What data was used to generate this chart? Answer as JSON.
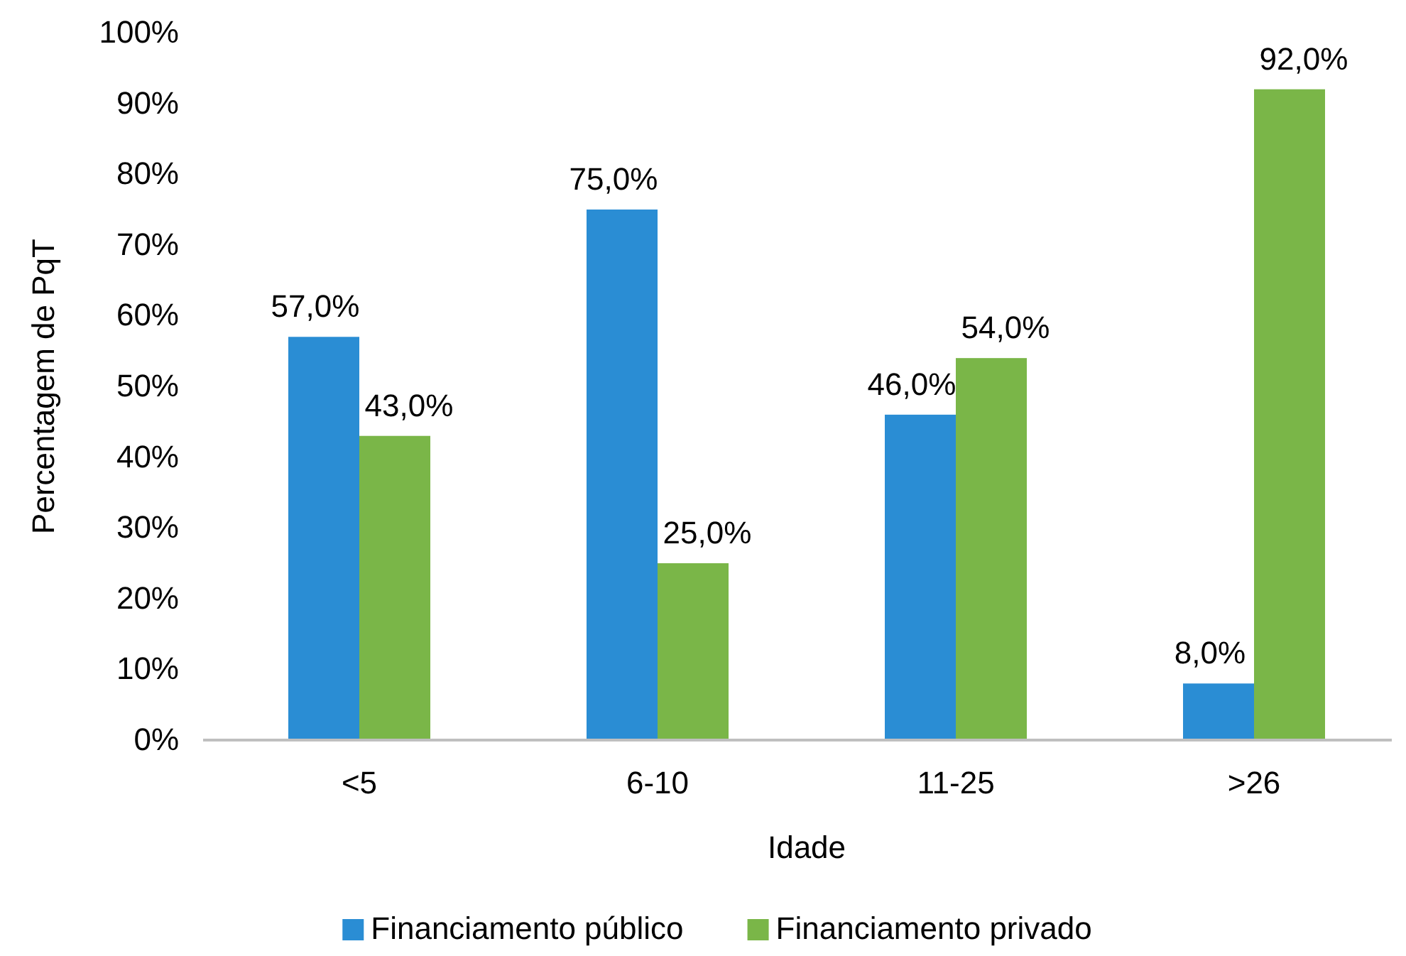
{
  "chart_data": {
    "type": "bar",
    "xlabel": "Idade",
    "ylabel": "Percentagem de PqT",
    "categories": [
      "<5",
      "6-10",
      "11-25",
      ">26"
    ],
    "series": [
      {
        "name": "Financiamento público",
        "color": "#2a8dd4",
        "values": [
          57,
          75,
          46,
          8
        ],
        "value_labels": [
          "57,0%",
          "75,0%",
          "46,0%",
          "8,0%"
        ]
      },
      {
        "name": "Financiamento privado",
        "color": "#7ab648",
        "values": [
          43,
          25,
          54,
          92
        ],
        "value_labels": [
          "43,0%",
          "25,0%",
          "54,0%",
          "92,0%"
        ]
      }
    ],
    "ylim": [
      0,
      100
    ],
    "yticks": [
      {
        "value": 0,
        "label": "0%"
      },
      {
        "value": 10,
        "label": "10%"
      },
      {
        "value": 20,
        "label": "20%"
      },
      {
        "value": 30,
        "label": "30%"
      },
      {
        "value": 40,
        "label": "40%"
      },
      {
        "value": 50,
        "label": "50%"
      },
      {
        "value": 60,
        "label": "60%"
      },
      {
        "value": 70,
        "label": "70%"
      },
      {
        "value": 80,
        "label": "80%"
      },
      {
        "value": 90,
        "label": "90%"
      },
      {
        "value": 100,
        "label": "100%"
      }
    ],
    "grid": false,
    "legend": "bottom"
  }
}
